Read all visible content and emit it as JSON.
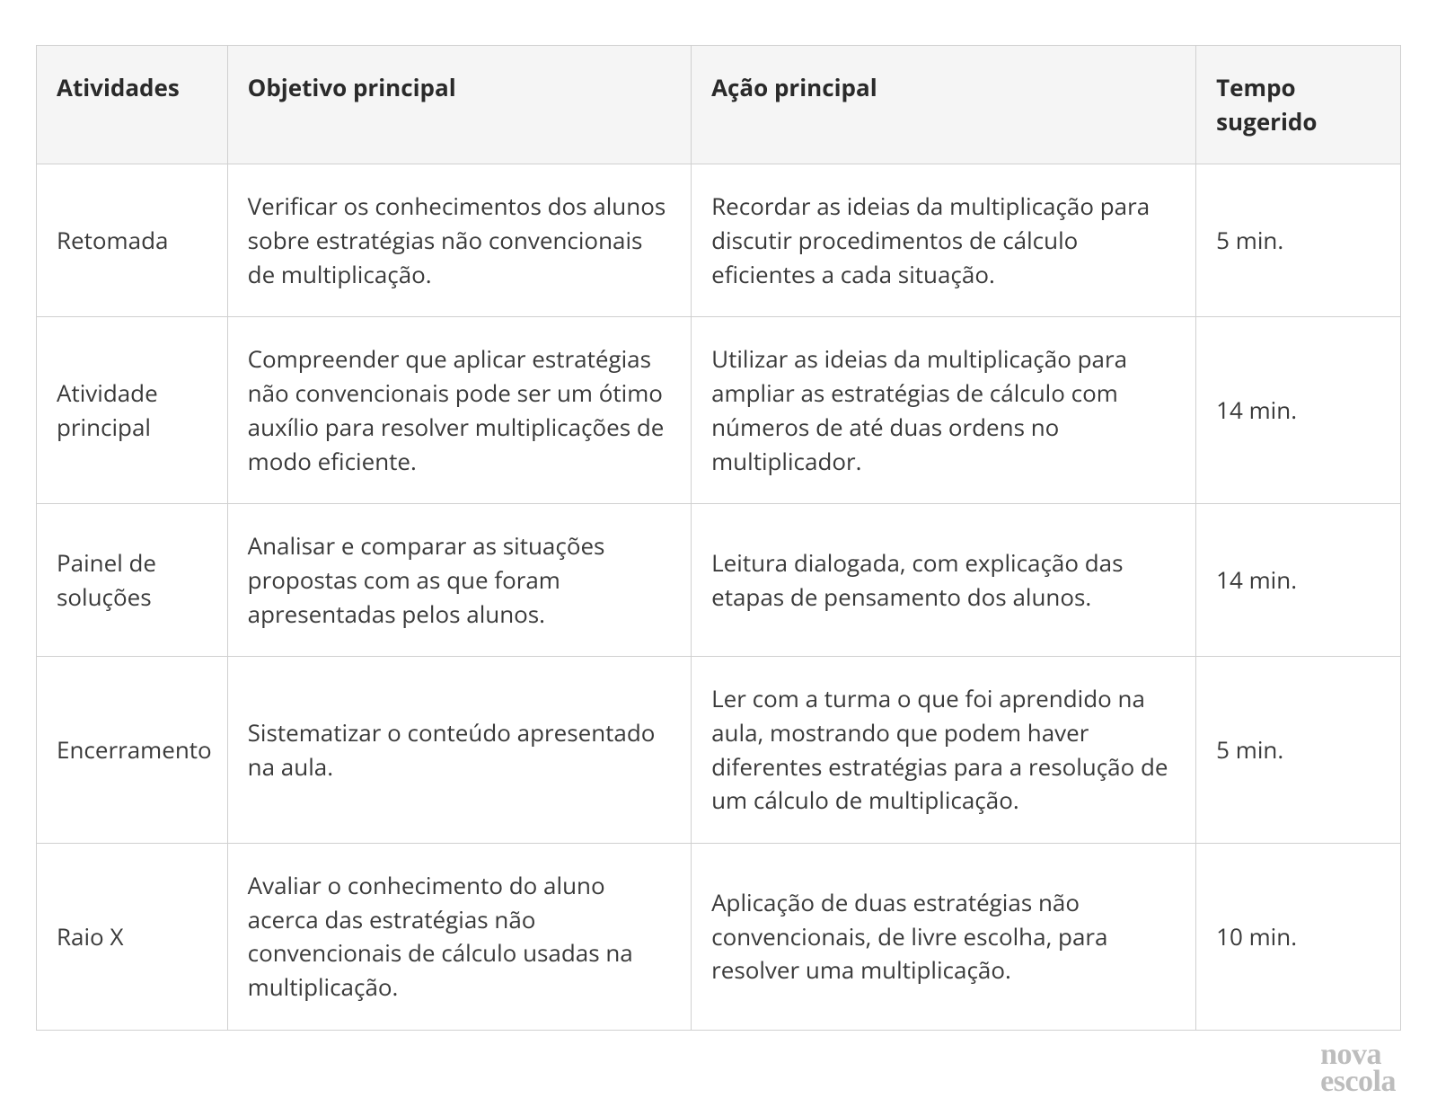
{
  "table": {
    "columns": [
      {
        "key": "atividades",
        "label": "Atividades",
        "class": "col-atividades"
      },
      {
        "key": "objetivo",
        "label": "Objetivo principal",
        "class": "col-objetivo"
      },
      {
        "key": "acao",
        "label": "Ação principal",
        "class": "col-acao"
      },
      {
        "key": "tempo",
        "label": "Tempo sugerido",
        "class": "col-tempo"
      }
    ],
    "rows": [
      {
        "atividades": "Retomada",
        "objetivo": "Verificar os conhecimentos dos alunos sobre estratégias não convencionais de multiplicação.",
        "acao": "Recordar as ideias da multiplicação para discutir procedimentos de cálculo eficientes a cada situação.",
        "tempo": "5 min."
      },
      {
        "atividades": "Atividade principal",
        "objetivo": "Compreender que aplicar estratégias não convencionais pode ser um ótimo auxílio para resolver multiplicações de modo eficiente.",
        "acao": "Utilizar as ideias da multiplicação  para ampliar as estratégias de cálculo com números de até duas ordens no multiplicador.",
        "tempo": "14 min."
      },
      {
        "atividades": "Painel de soluções",
        "objetivo": "Analisar e comparar as situações propostas com as que foram apresentadas pelos alunos.",
        "acao": "Leitura dialogada, com explicação das etapas de pensamento dos alunos.",
        "tempo": "14 min."
      },
      {
        "atividades": "Encerramento",
        "objetivo": "Sistematizar o conteúdo apresentado na aula.",
        "acao": "Ler com a turma o que foi aprendido na aula, mostrando que podem haver diferentes estratégias para a resolução de um cálculo  de multiplicação.",
        "tempo": "5 min."
      },
      {
        "atividades": "Raio X",
        "objetivo": "Avaliar o conhecimento do aluno acerca das estratégias não convencionais de cálculo usadas na multiplicação.",
        "acao": "Aplicação de duas estratégias não convencionais, de livre escolha, para resolver uma multiplicação.",
        "tempo": "10 min."
      }
    ],
    "header_bg": "#f5f5f5",
    "border_color": "#d0d0d0",
    "text_color": "#3a3a3a",
    "header_fontsize": 26,
    "cell_fontsize": 26
  },
  "logo": {
    "line1": "nova",
    "line2": "escola",
    "color": "#bdbdbd"
  }
}
